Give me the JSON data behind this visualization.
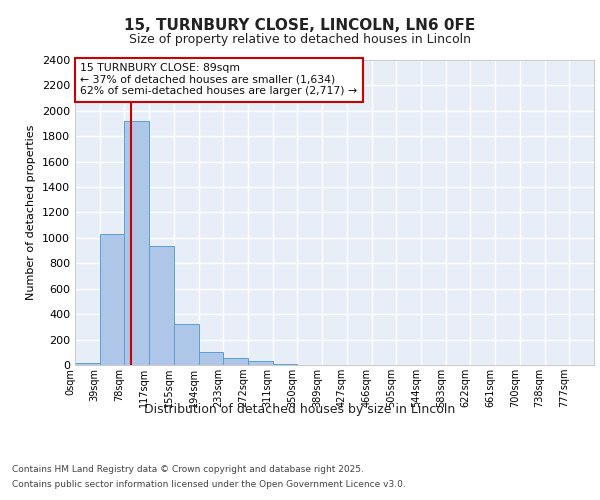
{
  "title_line1": "15, TURNBURY CLOSE, LINCOLN, LN6 0FE",
  "title_line2": "Size of property relative to detached houses in Lincoln",
  "xlabel": "Distribution of detached houses by size in Lincoln",
  "ylabel": "Number of detached properties",
  "footnote_line1": "Contains HM Land Registry data © Crown copyright and database right 2025.",
  "footnote_line2": "Contains public sector information licensed under the Open Government Licence v3.0.",
  "bin_labels": [
    "0sqm",
    "39sqm",
    "78sqm",
    "117sqm",
    "155sqm",
    "194sqm",
    "233sqm",
    "272sqm",
    "311sqm",
    "350sqm",
    "389sqm",
    "427sqm",
    "466sqm",
    "505sqm",
    "544sqm",
    "583sqm",
    "622sqm",
    "661sqm",
    "700sqm",
    "738sqm",
    "777sqm"
  ],
  "bar_values": [
    15,
    1030,
    1920,
    940,
    320,
    105,
    55,
    30,
    10,
    0,
    0,
    0,
    0,
    0,
    0,
    0,
    0,
    0,
    0,
    0,
    0
  ],
  "bar_color": "#aec6e8",
  "bar_edge_color": "#5a9fd4",
  "ylim": [
    0,
    2400
  ],
  "yticks": [
    0,
    200,
    400,
    600,
    800,
    1000,
    1200,
    1400,
    1600,
    1800,
    2000,
    2200,
    2400
  ],
  "vline_x": 2.28,
  "vline_color": "#cc0000",
  "annotation_text_line1": "15 TURNBURY CLOSE: 89sqm",
  "annotation_text_line2": "← 37% of detached houses are smaller (1,634)",
  "annotation_text_line3": "62% of semi-detached houses are larger (2,717) →",
  "bg_color": "#e8eef8",
  "grid_color": "#ffffff",
  "ann_box_edge_color": "#cc0000"
}
